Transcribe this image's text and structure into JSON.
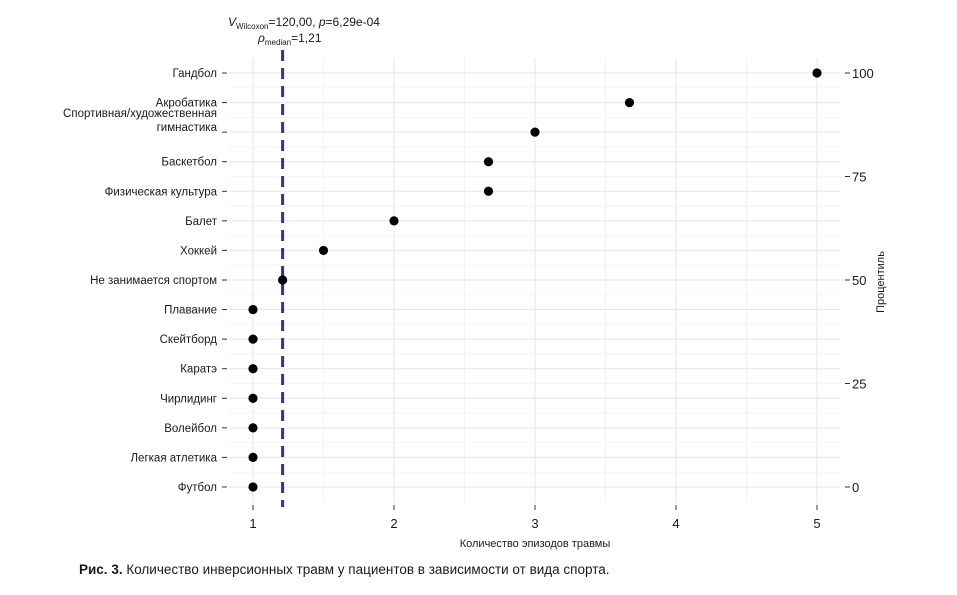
{
  "chart_data": {
    "type": "scatter",
    "xlabel": "Количество эпизодов травмы",
    "y2label": "Процентиль",
    "xlim": [
      0.8,
      5.2
    ],
    "x_ticks": [
      "1",
      "2",
      "3",
      "4",
      "5"
    ],
    "y2_ticks": [
      "100",
      "75",
      "50",
      "25",
      "0"
    ],
    "grid": true,
    "categories": [
      "Гандбол",
      "Акробатика",
      "Спортивная/художественная гимнастика",
      "Баскетбол",
      "Физическая культура",
      "Балет",
      "Хоккей",
      "Не занимается спортом",
      "Плавание",
      "Скейтборд",
      "Каратэ",
      "Чирлидинг",
      "Волейбол",
      "Легкая атлетика",
      "Футбол"
    ],
    "category_lines": [
      [
        "Гандбол"
      ],
      [
        "Акробатика"
      ],
      [
        "Спортивная/художественная",
        "гимнастика"
      ],
      [
        "Баскетбол"
      ],
      [
        "Физическая культура"
      ],
      [
        "Балет"
      ],
      [
        "Хоккей"
      ],
      [
        "Не занимается спортом"
      ],
      [
        "Плавание"
      ],
      [
        "Скейтборд"
      ],
      [
        "Каратэ"
      ],
      [
        "Чирлидинг"
      ],
      [
        "Волейбол"
      ],
      [
        "Легкая атлетика"
      ],
      [
        "Футбол"
      ]
    ],
    "values": [
      5,
      3.67,
      3,
      2.67,
      2.67,
      2,
      1.5,
      1.21,
      1,
      1,
      1,
      1,
      1,
      1,
      1
    ],
    "median_line": 1.21,
    "median_color": "#3b2f8f",
    "point_color": "#000000",
    "annotation": {
      "v_label": "V",
      "v_sub": "Wilcoxon",
      "v_rest": "=120,00, ",
      "p_label": "p",
      "p_rest": "=6,29e-04",
      "rho_label": "ρ",
      "rho_sub": "median",
      "rho_rest": "=1,21"
    }
  },
  "caption": {
    "prefix": "Рис. 3.",
    "text": " Количество инверсионных травм у пациентов в зависимости от вида спорта."
  }
}
